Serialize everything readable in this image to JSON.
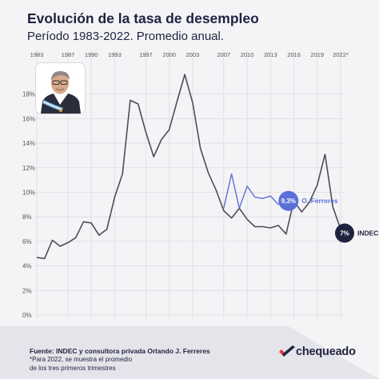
{
  "header": {
    "title": "Evolución de la tasa de desempleo",
    "subtitle": "Período 1983-2022. Promedio anual."
  },
  "chart_data": {
    "type": "line",
    "x_tick_labels": [
      "1983",
      "1987",
      "1990",
      "1993",
      "1997",
      "2000",
      "2003",
      "2007",
      "2010",
      "2013",
      "2016",
      "2019",
      "2022*"
    ],
    "y_tick_labels": [
      "0%",
      "2%",
      "4%",
      "6%",
      "8%",
      "10%",
      "12%",
      "14%",
      "16%",
      "18%"
    ],
    "ylim": [
      0,
      20
    ],
    "grid": true,
    "series": [
      {
        "name": "INDEC",
        "color": "#4d4d55",
        "points": [
          {
            "x": 1983,
            "y": 4.7
          },
          {
            "x": 1984,
            "y": 4.6
          },
          {
            "x": 1985,
            "y": 6.1
          },
          {
            "x": 1986,
            "y": 5.6
          },
          {
            "x": 1987,
            "y": 5.9
          },
          {
            "x": 1988,
            "y": 6.3
          },
          {
            "x": 1989,
            "y": 7.6
          },
          {
            "x": 1990,
            "y": 7.5
          },
          {
            "x": 1991,
            "y": 6.5
          },
          {
            "x": 1992,
            "y": 7.0
          },
          {
            "x": 1993,
            "y": 9.6
          },
          {
            "x": 1994,
            "y": 11.5
          },
          {
            "x": 1995,
            "y": 17.5
          },
          {
            "x": 1996,
            "y": 17.2
          },
          {
            "x": 1997,
            "y": 14.9
          },
          {
            "x": 1998,
            "y": 12.9
          },
          {
            "x": 1999,
            "y": 14.3
          },
          {
            "x": 2000,
            "y": 15.1
          },
          {
            "x": 2001,
            "y": 17.4
          },
          {
            "x": 2002,
            "y": 19.6
          },
          {
            "x": 2003,
            "y": 17.3
          },
          {
            "x": 2004,
            "y": 13.6
          },
          {
            "x": 2005,
            "y": 11.6
          },
          {
            "x": 2006,
            "y": 10.2
          },
          {
            "x": 2007,
            "y": 8.5
          },
          {
            "x": 2008,
            "y": 7.9
          },
          {
            "x": 2009,
            "y": 8.7
          },
          {
            "x": 2010,
            "y": 7.8
          },
          {
            "x": 2011,
            "y": 7.2
          },
          {
            "x": 2012,
            "y": 7.2
          },
          {
            "x": 2013,
            "y": 7.1
          },
          {
            "x": 2014,
            "y": 7.3
          },
          {
            "x": 2015,
            "y": 6.6
          },
          {
            "x": 2016,
            "y": 9.3
          },
          {
            "x": 2017,
            "y": 8.4
          },
          {
            "x": 2018,
            "y": 9.2
          },
          {
            "x": 2019,
            "y": 10.6
          },
          {
            "x": 2020,
            "y": 13.1
          },
          {
            "x": 2021,
            "y": 8.8
          },
          {
            "x": 2022,
            "y": 7.0
          }
        ],
        "end_label": "INDEC",
        "end_badge": "7%"
      },
      {
        "name": "O. Ferreres",
        "color": "#5b6fd8",
        "points": [
          {
            "x": 2007,
            "y": 8.7
          },
          {
            "x": 2008,
            "y": 11.5
          },
          {
            "x": 2009,
            "y": 8.7
          },
          {
            "x": 2010,
            "y": 10.5
          },
          {
            "x": 2011,
            "y": 9.6
          },
          {
            "x": 2012,
            "y": 9.5
          },
          {
            "x": 2013,
            "y": 9.7
          },
          {
            "x": 2014,
            "y": 9.0
          },
          {
            "x": 2015,
            "y": 9.3
          }
        ],
        "end_label": "O. Ferreres",
        "end_badge": "9,3%"
      }
    ]
  },
  "footer": {
    "source": "Fuente: INDEC y consultora privada Orlando J. Ferreres",
    "note_lines": [
      "*Para 2022, se muestra el promedio",
      "de los tres primeros trimestres"
    ],
    "brand": "chequeado"
  },
  "colors": {
    "background": "#f4f4f6",
    "text": "#1f2340",
    "indec": "#4d4d55",
    "ferreres": "#5b6fd8",
    "brand_red": "#e23b3b",
    "footer_panel": "#e4e4ea"
  },
  "icons": {
    "brand_logo": "check-mark-logo-icon"
  }
}
